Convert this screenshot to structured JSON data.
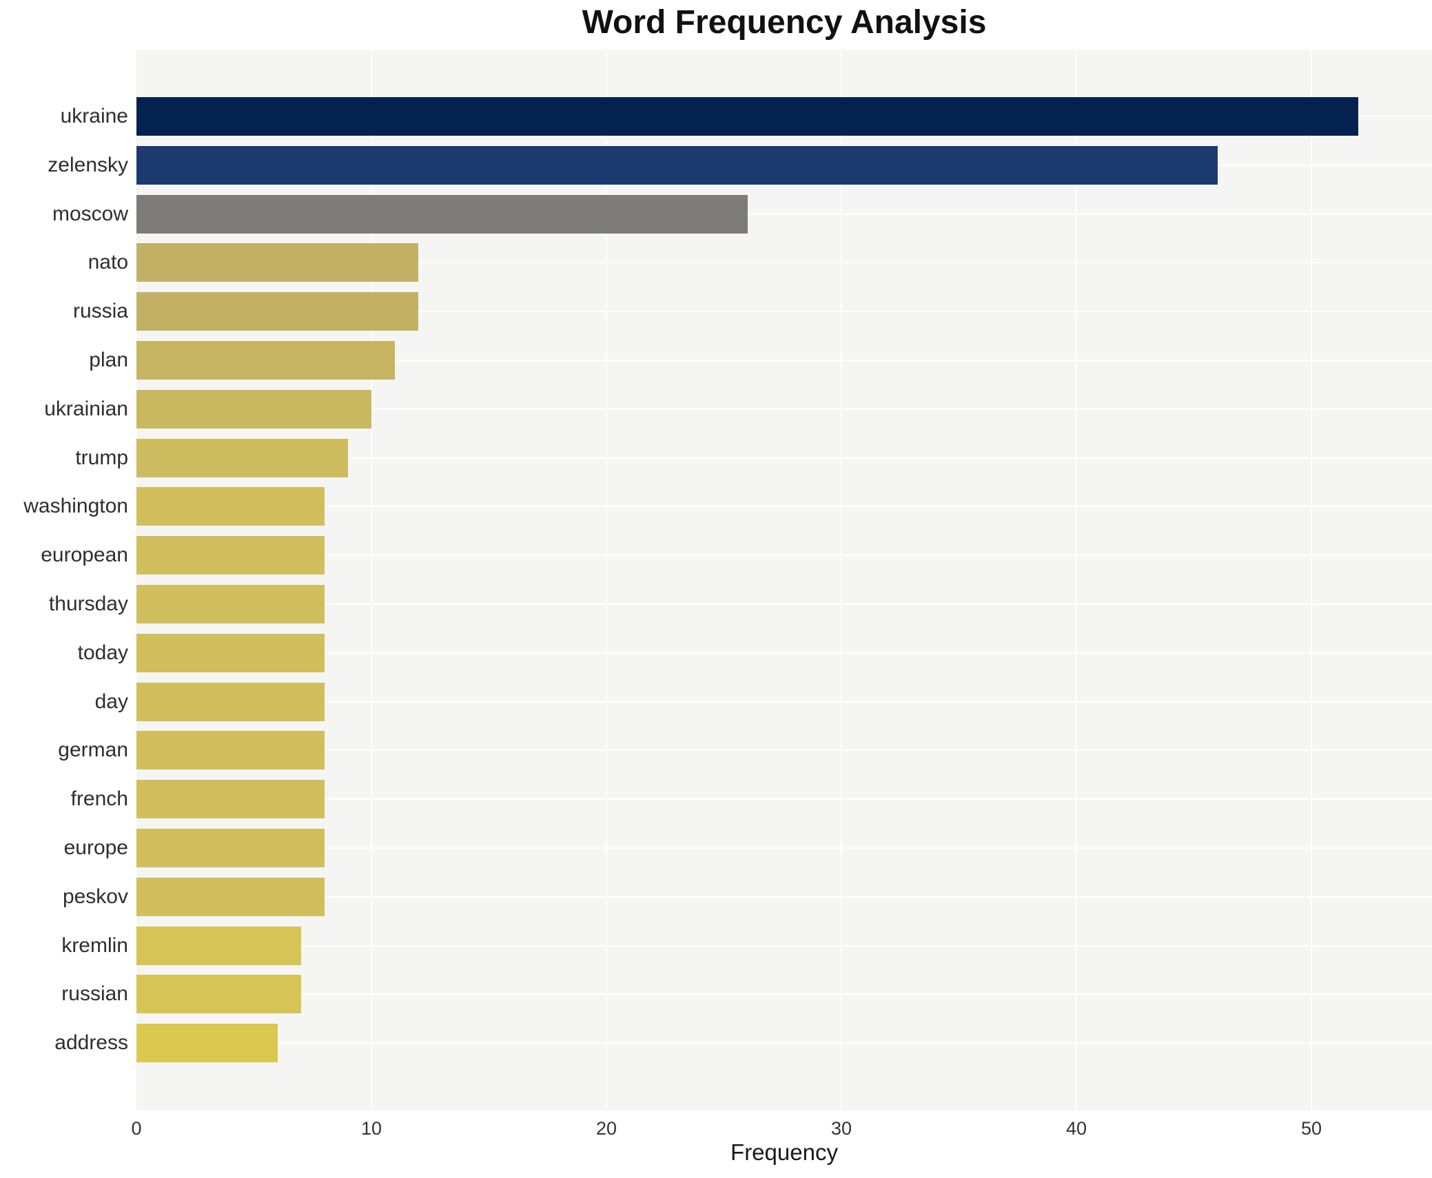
{
  "title": "Word Frequency Analysis",
  "chart_data": {
    "type": "bar",
    "orientation": "horizontal",
    "title": "Word Frequency Analysis",
    "xlabel": "Frequency",
    "ylabel": "",
    "x_ticks": [
      0,
      10,
      20,
      30,
      40,
      50
    ],
    "xlim": [
      0,
      55.1
    ],
    "grid": true,
    "legend": false,
    "categories": [
      "ukraine",
      "zelensky",
      "moscow",
      "nato",
      "russia",
      "plan",
      "ukrainian",
      "trump",
      "washington",
      "european",
      "thursday",
      "today",
      "day",
      "german",
      "french",
      "europe",
      "peskov",
      "kremlin",
      "russian",
      "address"
    ],
    "values": [
      52,
      46,
      26,
      12,
      12,
      11,
      10,
      9,
      8,
      8,
      8,
      8,
      8,
      8,
      8,
      8,
      8,
      7,
      7,
      6
    ],
    "bar_colors": [
      "#03224f",
      "#1c3a6e",
      "#7d7c78",
      "#c2b164",
      "#c2b164",
      "#c6b462",
      "#c9b860",
      "#cdbb5f",
      "#d1bf5d",
      "#d1bf5d",
      "#d1bf5d",
      "#d1bf5d",
      "#d1bf5d",
      "#d1bf5d",
      "#d1bf5d",
      "#d1bf5d",
      "#d1bf5d",
      "#d6c456",
      "#d6c456",
      "#dac84f"
    ]
  },
  "style": {
    "figure_bg": "#ffffff",
    "plot_bg": "#f5f5f4",
    "grid_color": "#ffffff",
    "title_color": "#111111",
    "tick_color": "#333333",
    "ylabel_color": "#2e2e2e",
    "axis_label_color": "#1a1a1a"
  }
}
